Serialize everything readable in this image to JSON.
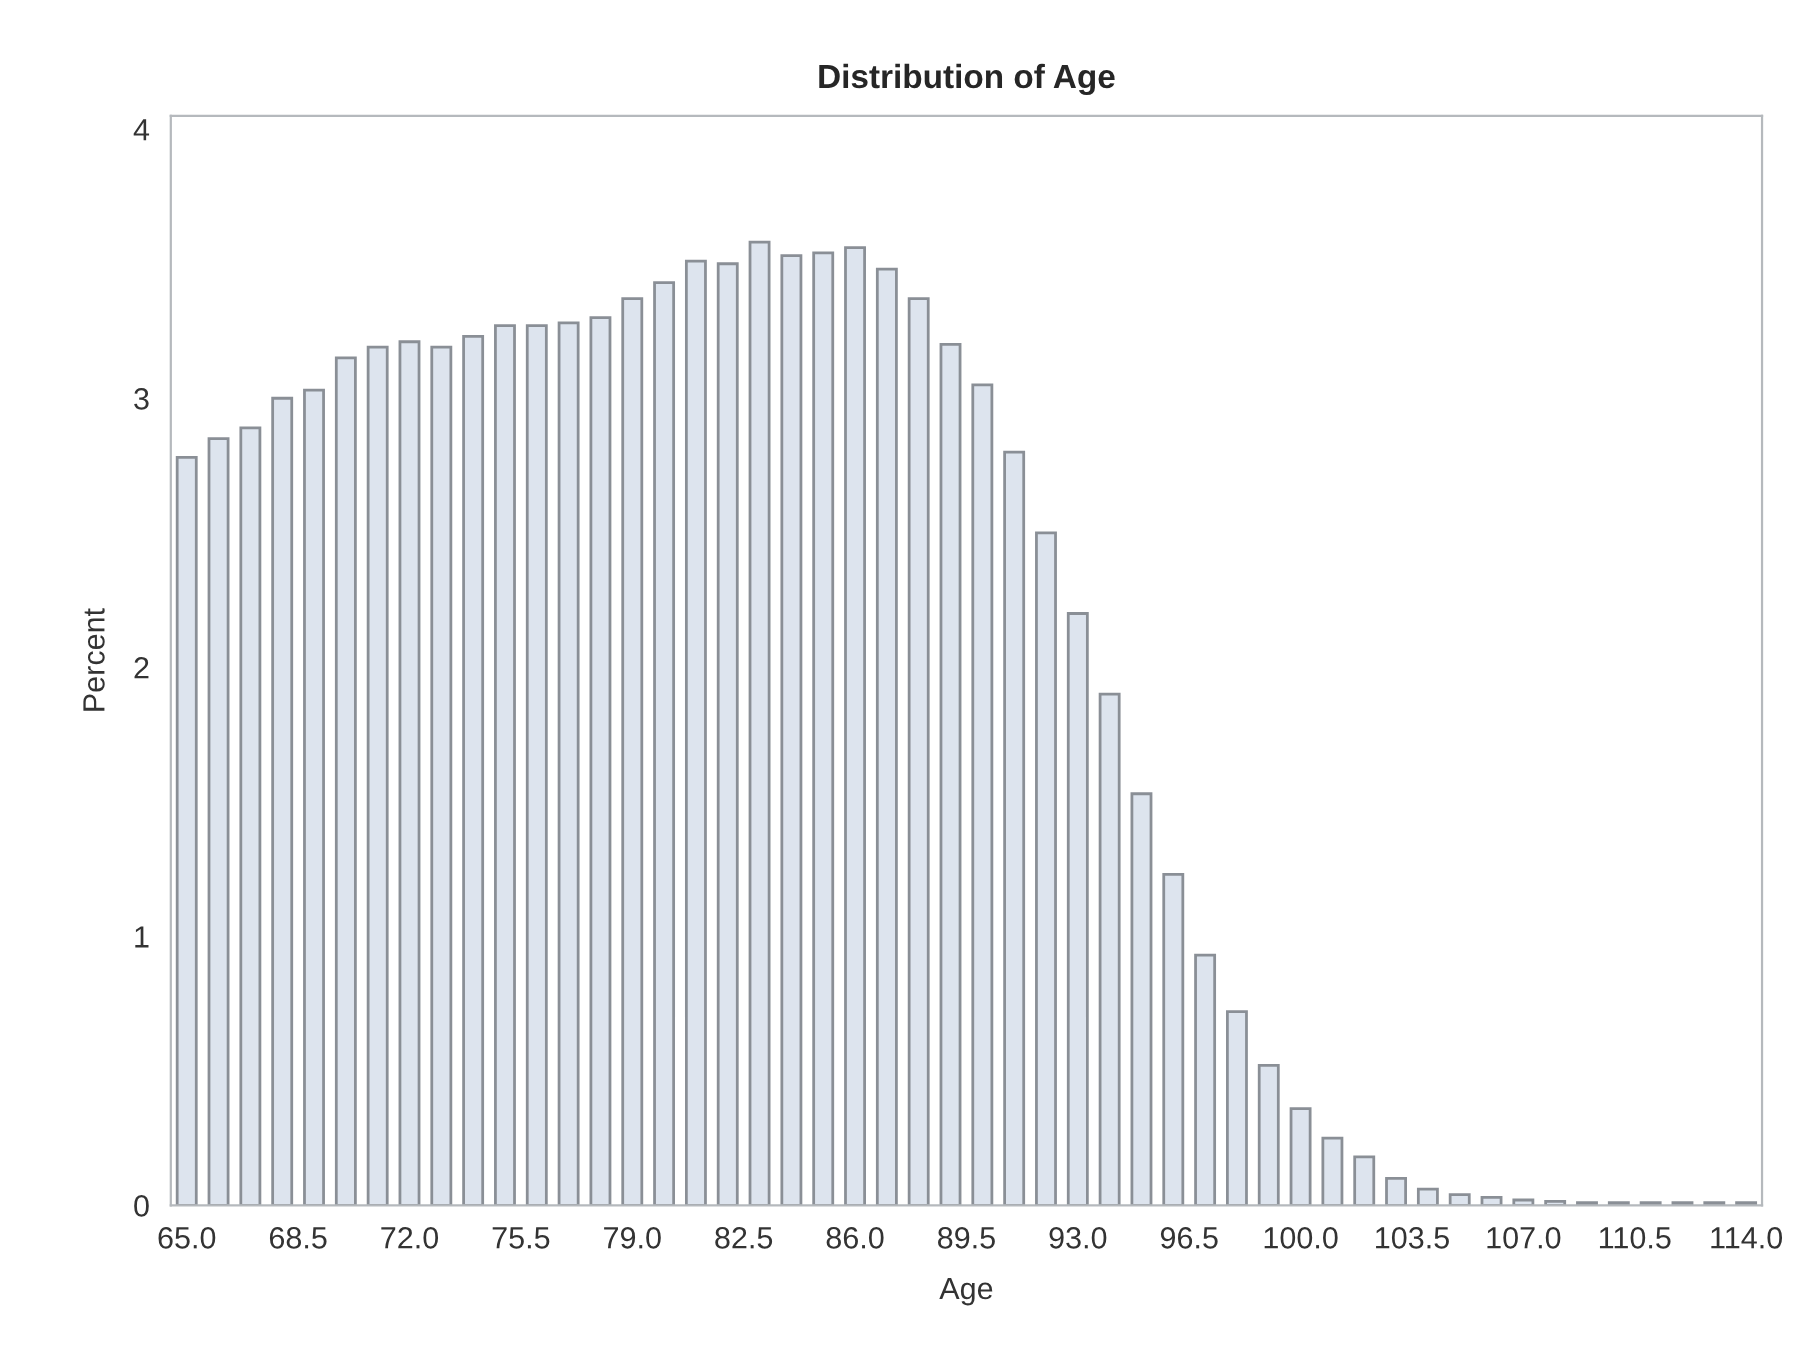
{
  "chart_data": {
    "type": "histogram",
    "title": "Distribution of Age",
    "xlabel": "Age",
    "ylabel": "Percent",
    "bins": [
      64.5,
      65.5,
      66.5,
      67.5,
      68.5,
      69.5,
      70.5,
      71.5,
      72.5,
      73.5,
      74.5,
      75.5,
      76.5,
      77.5,
      78.5,
      79.5,
      80.5,
      81.5,
      82.5,
      83.5,
      84.5,
      85.5,
      86.5,
      87.5,
      88.5,
      89.5,
      90.5,
      91.5,
      92.5,
      93.5,
      94.5,
      95.5,
      96.5,
      97.5,
      98.5,
      99.5,
      100.5,
      101.5,
      102.5,
      103.5,
      104.5,
      105.5,
      106.5,
      107.5,
      108.5,
      109.5,
      110.5,
      111.5,
      112.5,
      113.5,
      114.5
    ],
    "values": [
      2.78,
      2.85,
      2.89,
      3.0,
      3.03,
      3.15,
      3.19,
      3.21,
      3.19,
      3.23,
      3.27,
      3.27,
      3.28,
      3.3,
      3.37,
      3.43,
      3.51,
      3.5,
      3.58,
      3.53,
      3.54,
      3.56,
      3.48,
      3.37,
      3.2,
      3.05,
      2.8,
      2.5,
      2.2,
      1.9,
      1.53,
      1.23,
      0.93,
      0.72,
      0.52,
      0.36,
      0.25,
      0.18,
      0.1,
      0.06,
      0.04,
      0.03,
      0.02,
      0.015,
      0.01,
      0.01,
      0.01,
      0.01,
      0.01,
      0.01
    ],
    "color": "#dde4ee",
    "xlim": [
      64.5,
      114.5
    ],
    "xticks": [
      {
        "value": 65.0,
        "label": "65.0"
      },
      {
        "value": 68.5,
        "label": "68.5"
      },
      {
        "value": 72.0,
        "label": "72.0"
      },
      {
        "value": 75.5,
        "label": "75.5"
      },
      {
        "value": 79.0,
        "label": "79.0"
      },
      {
        "value": 82.5,
        "label": "82.5"
      },
      {
        "value": 86.0,
        "label": "86.0"
      },
      {
        "value": 89.5,
        "label": "89.5"
      },
      {
        "value": 93.0,
        "label": "93.0"
      },
      {
        "value": 96.5,
        "label": "96.5"
      },
      {
        "value": 100.0,
        "label": "100.0"
      },
      {
        "value": 103.5,
        "label": "103.5"
      },
      {
        "value": 107.0,
        "label": "107.0"
      },
      {
        "value": 110.5,
        "label": "110.5"
      },
      {
        "value": 114.0,
        "label": "114.0"
      }
    ],
    "ylim": [
      0,
      4.05
    ],
    "yticks": [
      0,
      1,
      2,
      3,
      4
    ],
    "grid": false
  }
}
